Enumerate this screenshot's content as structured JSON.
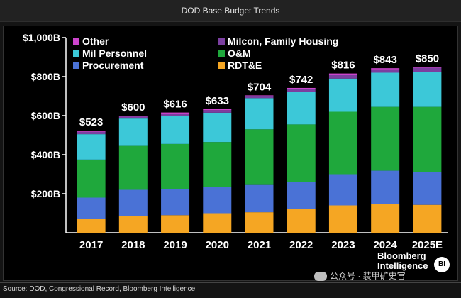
{
  "window": {
    "title": "DOD Base Budget Trends"
  },
  "footer": {
    "source": "Source: DOD, Congressional Record, Bloomberg Intelligence"
  },
  "brand": {
    "line1": "Bloomberg",
    "line2": "Intelligence",
    "badge": "BI"
  },
  "watermark": {
    "text": "公众号 · 装甲矿史官",
    "icon": "wechat-icon"
  },
  "chart_data": {
    "type": "bar",
    "stacked": true,
    "ylim": [
      0,
      1000
    ],
    "yticks": [
      "$200B",
      "$400B",
      "$600B",
      "$800B",
      "$1,000B"
    ],
    "ytick_values": [
      200,
      400,
      600,
      800,
      1000
    ],
    "categories": [
      "2017",
      "2018",
      "2019",
      "2020",
      "2021",
      "2022",
      "2023",
      "2024",
      "2025E"
    ],
    "totals": [
      "$523",
      "$600",
      "$616",
      "$633",
      "$704",
      "$742",
      "$816",
      "$843",
      "$850"
    ],
    "total_values": [
      523,
      600,
      616,
      633,
      704,
      742,
      816,
      843,
      850
    ],
    "legend_position": "top-left",
    "grid": false,
    "legend": [
      {
        "name": "Other",
        "color": "#cc44cc"
      },
      {
        "name": "Milcon, Family Housing",
        "color": "#7b3fa0"
      },
      {
        "name": "Mil Personnel",
        "color": "#3cc8d8"
      },
      {
        "name": "O&M",
        "color": "#1fa83c"
      },
      {
        "name": "Procurement",
        "color": "#4a72d6"
      },
      {
        "name": "RDT&E",
        "color": "#f5a623"
      }
    ],
    "series": [
      {
        "name": "RDT&E",
        "color": "#f5a623",
        "values": [
          70,
          85,
          90,
          100,
          105,
          120,
          140,
          148,
          143
        ]
      },
      {
        "name": "Procurement",
        "color": "#4a72d6",
        "values": [
          110,
          135,
          135,
          135,
          140,
          140,
          160,
          170,
          167
        ]
      },
      {
        "name": "O&M",
        "color": "#1fa83c",
        "values": [
          195,
          225,
          230,
          230,
          285,
          295,
          320,
          327,
          335
        ]
      },
      {
        "name": "Mil Personnel",
        "color": "#3cc8d8",
        "values": [
          130,
          140,
          145,
          150,
          160,
          165,
          170,
          175,
          180
        ]
      },
      {
        "name": "Milcon, Family Housing",
        "color": "#7b3fa0",
        "values": [
          12,
          10,
          11,
          13,
          10,
          18,
          20,
          17,
          20
        ]
      },
      {
        "name": "Other",
        "color": "#cc44cc",
        "values": [
          6,
          5,
          5,
          5,
          4,
          4,
          6,
          6,
          5
        ]
      }
    ]
  }
}
